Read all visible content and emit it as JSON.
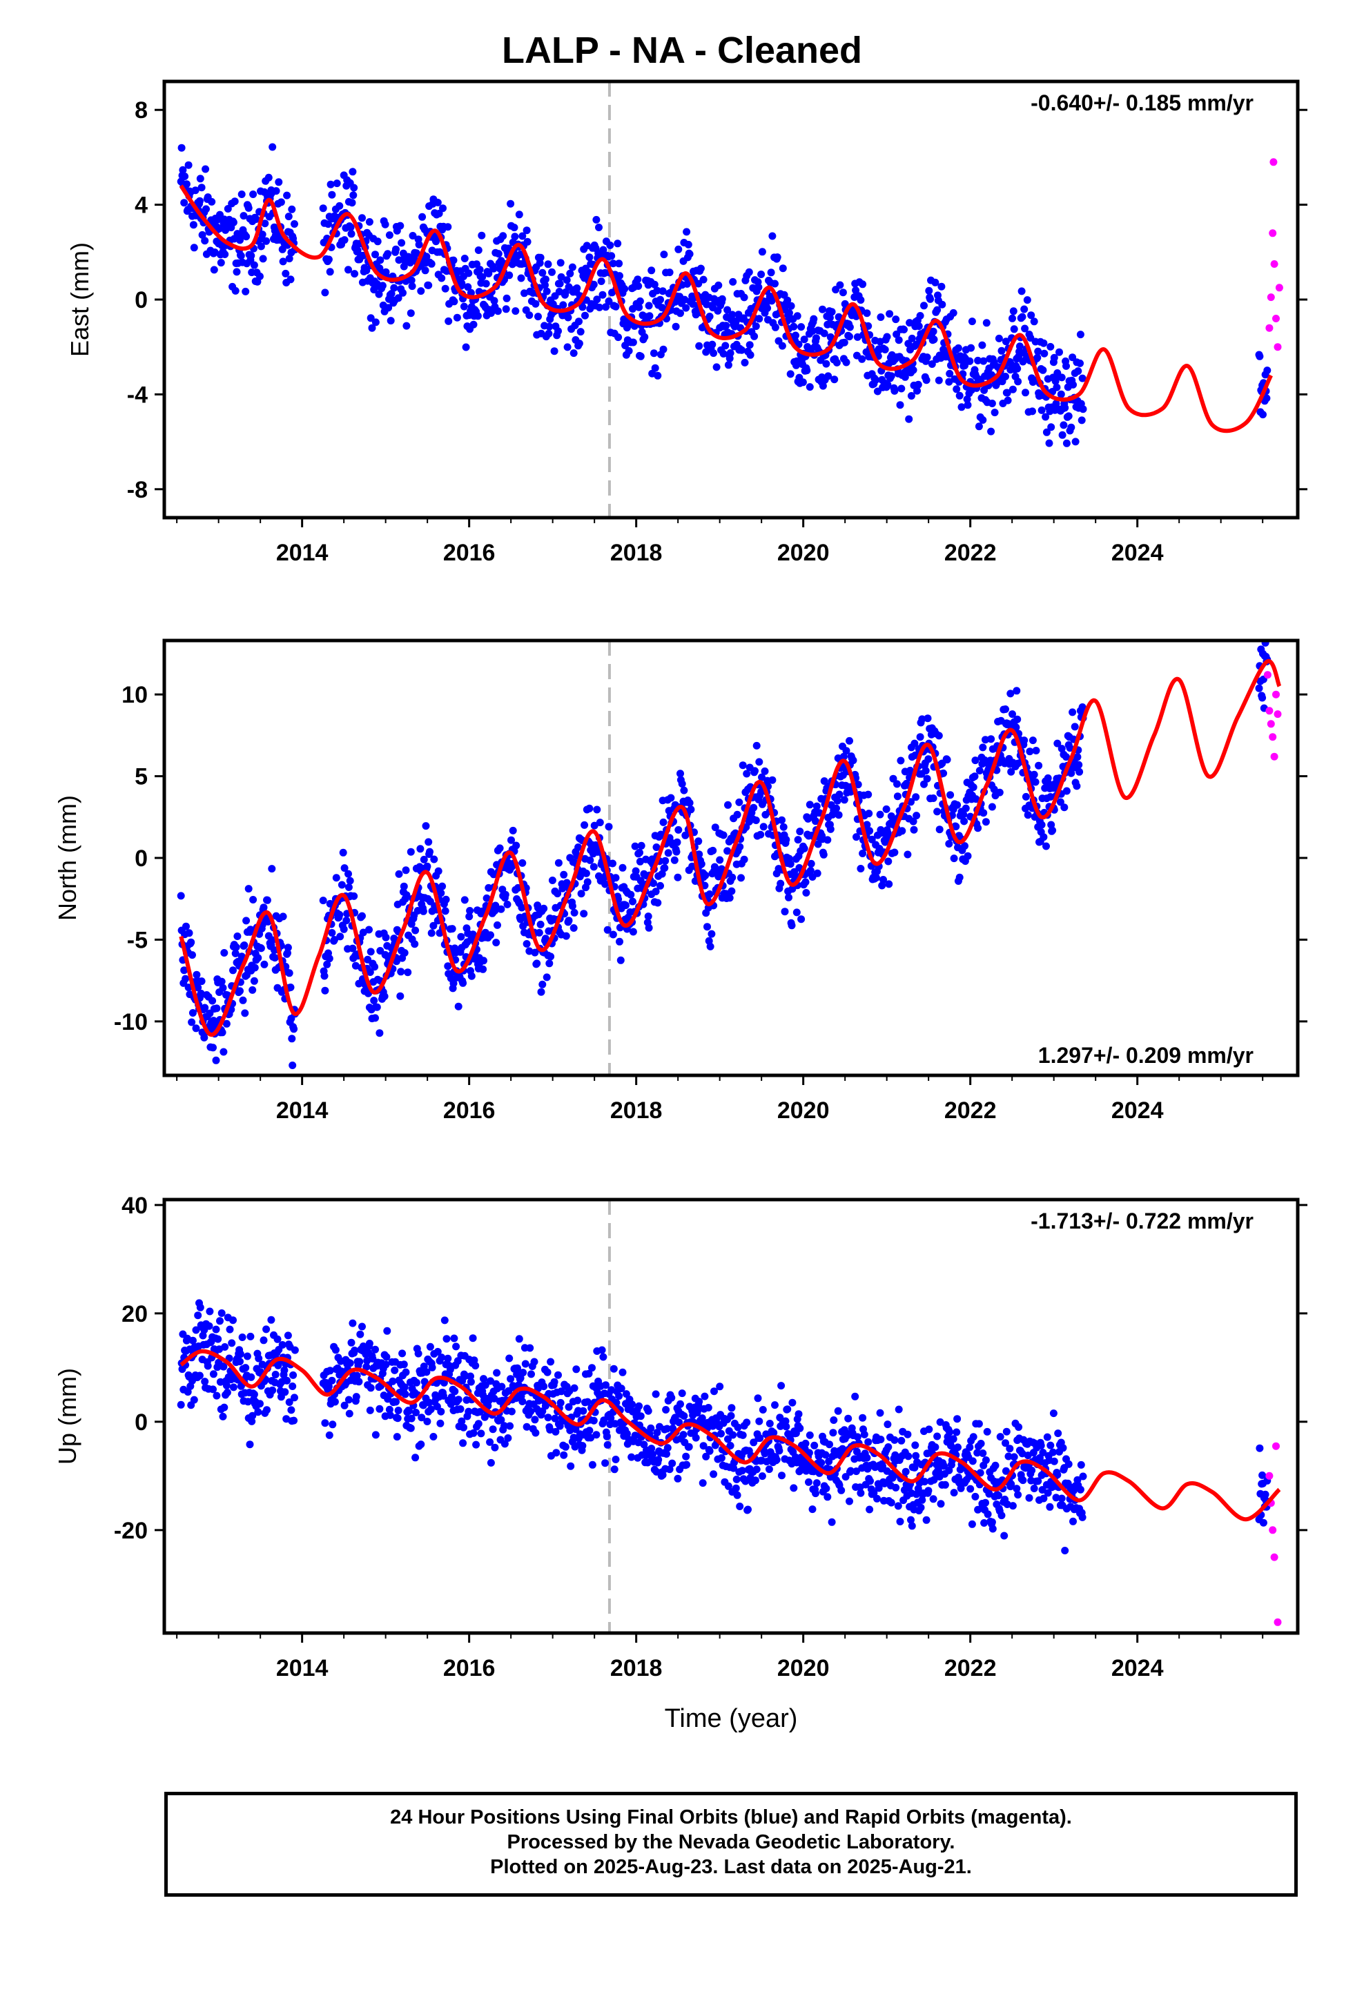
{
  "title": "LALP  - NA - Cleaned",
  "colors": {
    "final": "#0000ff",
    "rapid": "#ff00ff",
    "model": "#ff0000",
    "marker": "#bbbbbb"
  },
  "chart_data": [
    {
      "type": "scatter",
      "ylabel": "East (mm)",
      "rate_label": "-0.640+/- 0.185 mm/yr",
      "rate_position": "top-right",
      "xlim": [
        2012.35,
        2025.92
      ],
      "ylim": [
        -9.2,
        9.2
      ],
      "yticks": [
        -8,
        -4,
        0,
        4,
        8
      ],
      "xticks": [
        2014,
        2016,
        2018,
        2020,
        2022,
        2024
      ],
      "event_line_x": 2017.68,
      "series": [
        {
          "values": [
            [
              2012.55,
              4.8
            ],
            [
              2012.8,
              3.5
            ],
            [
              2013.1,
              2.4
            ],
            [
              2013.4,
              2.3
            ],
            [
              2013.6,
              4.2
            ],
            [
              2013.8,
              2.6
            ],
            [
              2014.2,
              1.8
            ],
            [
              2014.55,
              3.6
            ],
            [
              2014.9,
              1.1
            ],
            [
              2015.3,
              1.1
            ],
            [
              2015.6,
              2.9
            ],
            [
              2015.9,
              0.3
            ],
            [
              2016.3,
              0.5
            ],
            [
              2016.6,
              2.3
            ],
            [
              2016.9,
              -0.2
            ],
            [
              2017.3,
              -0.2
            ],
            [
              2017.6,
              1.7
            ],
            [
              2017.9,
              -0.7
            ],
            [
              2018.3,
              -0.8
            ],
            [
              2018.6,
              1.1
            ],
            [
              2018.9,
              -1.4
            ],
            [
              2019.3,
              -1.3
            ],
            [
              2019.6,
              0.5
            ],
            [
              2019.9,
              -2.0
            ],
            [
              2020.3,
              -2.1
            ],
            [
              2020.6,
              -0.2
            ],
            [
              2020.9,
              -2.7
            ],
            [
              2021.3,
              -2.6
            ],
            [
              2021.6,
              -0.9
            ],
            [
              2021.9,
              -3.4
            ],
            [
              2022.3,
              -3.3
            ],
            [
              2022.6,
              -1.5
            ],
            [
              2022.9,
              -3.9
            ],
            [
              2023.3,
              -4.0
            ],
            [
              2023.6,
              -2.1
            ],
            [
              2023.9,
              -4.6
            ],
            [
              2024.3,
              -4.6
            ],
            [
              2024.6,
              -2.8
            ],
            [
              2024.9,
              -5.3
            ],
            [
              2025.3,
              -5.2
            ],
            [
              2025.6,
              -3.2
            ]
          ]
        },
        {
          "values": [
            [
              2025.58,
              -1.2
            ],
            [
              2025.6,
              0.1
            ],
            [
              2025.62,
              2.8
            ],
            [
              2025.63,
              5.8
            ],
            [
              2025.64,
              1.5
            ],
            [
              2025.66,
              -0.8
            ],
            [
              2025.68,
              -2.0
            ],
            [
              2025.7,
              0.5
            ]
          ]
        }
      ]
    },
    {
      "type": "scatter",
      "ylabel": "North (mm)",
      "rate_label": "1.297+/- 0.209 mm/yr",
      "rate_position": "bottom-right",
      "xlim": [
        2012.35,
        2025.92
      ],
      "ylim": [
        -13.3,
        13.3
      ],
      "yticks": [
        -10,
        -5,
        0,
        5,
        10
      ],
      "xticks": [
        2014,
        2016,
        2018,
        2020,
        2022,
        2024
      ],
      "event_line_x": 2017.68,
      "series": [
        {
          "values": [
            [
              2012.55,
              -4.8
            ],
            [
              2012.9,
              -10.8
            ],
            [
              2013.3,
              -6.5
            ],
            [
              2013.6,
              -3.4
            ],
            [
              2013.9,
              -9.5
            ],
            [
              2014.2,
              -6.0
            ],
            [
              2014.5,
              -2.3
            ],
            [
              2014.85,
              -8.2
            ],
            [
              2015.2,
              -4.5
            ],
            [
              2015.5,
              -0.9
            ],
            [
              2015.85,
              -6.9
            ],
            [
              2016.2,
              -3.5
            ],
            [
              2016.5,
              0.3
            ],
            [
              2016.85,
              -5.6
            ],
            [
              2017.2,
              -2.0
            ],
            [
              2017.5,
              1.6
            ],
            [
              2017.85,
              -4.1
            ],
            [
              2018.2,
              -0.8
            ],
            [
              2018.55,
              3.1
            ],
            [
              2018.85,
              -2.8
            ],
            [
              2019.2,
              1.0
            ],
            [
              2019.5,
              4.6
            ],
            [
              2019.85,
              -1.6
            ],
            [
              2020.2,
              2.1
            ],
            [
              2020.5,
              5.9
            ],
            [
              2020.85,
              -0.3
            ],
            [
              2021.2,
              3.0
            ],
            [
              2021.5,
              6.9
            ],
            [
              2021.85,
              1.0
            ],
            [
              2022.2,
              4.5
            ],
            [
              2022.5,
              7.8
            ],
            [
              2022.85,
              2.5
            ],
            [
              2023.2,
              6.0
            ],
            [
              2023.5,
              9.6
            ],
            [
              2023.85,
              3.7
            ],
            [
              2024.2,
              7.5
            ],
            [
              2024.5,
              10.9
            ],
            [
              2024.85,
              5.0
            ],
            [
              2025.2,
              8.6
            ],
            [
              2025.55,
              12.0
            ],
            [
              2025.7,
              10.5
            ]
          ]
        },
        {
          "values": [
            [
              2025.56,
              11.2
            ],
            [
              2025.58,
              9.0
            ],
            [
              2025.6,
              8.2
            ],
            [
              2025.62,
              7.4
            ],
            [
              2025.64,
              6.2
            ],
            [
              2025.66,
              10.0
            ],
            [
              2025.68,
              8.8
            ]
          ]
        }
      ]
    },
    {
      "type": "scatter",
      "xlabel": "Time (year)",
      "ylabel": "Up (mm)",
      "rate_label": "-1.713+/- 0.722 mm/yr",
      "rate_position": "top-right",
      "xlim": [
        2012.35,
        2025.92
      ],
      "ylim": [
        -39,
        41
      ],
      "yticks": [
        -20,
        0,
        20,
        40
      ],
      "xticks": [
        2014,
        2016,
        2018,
        2020,
        2022,
        2024
      ],
      "event_line_x": 2017.68,
      "series": [
        {
          "values": [
            [
              2012.55,
              10.5
            ],
            [
              2012.8,
              13.0
            ],
            [
              2013.1,
              11.0
            ],
            [
              2013.4,
              6.5
            ],
            [
              2013.7,
              11.5
            ],
            [
              2014.0,
              9.5
            ],
            [
              2014.3,
              5.0
            ],
            [
              2014.6,
              9.5
            ],
            [
              2014.9,
              8.0
            ],
            [
              2015.3,
              3.5
            ],
            [
              2015.6,
              8.0
            ],
            [
              2015.9,
              6.5
            ],
            [
              2016.3,
              1.5
            ],
            [
              2016.6,
              6.0
            ],
            [
              2016.9,
              4.5
            ],
            [
              2017.3,
              -0.5
            ],
            [
              2017.6,
              4.0
            ],
            [
              2017.9,
              0.0
            ],
            [
              2018.3,
              -4.0
            ],
            [
              2018.6,
              -0.5
            ],
            [
              2018.9,
              -2.5
            ],
            [
              2019.3,
              -7.5
            ],
            [
              2019.6,
              -3.0
            ],
            [
              2019.9,
              -4.5
            ],
            [
              2020.3,
              -9.5
            ],
            [
              2020.6,
              -4.5
            ],
            [
              2020.9,
              -6.0
            ],
            [
              2021.3,
              -11.0
            ],
            [
              2021.6,
              -6.0
            ],
            [
              2021.9,
              -7.5
            ],
            [
              2022.3,
              -12.5
            ],
            [
              2022.6,
              -7.5
            ],
            [
              2022.9,
              -9.0
            ],
            [
              2023.3,
              -14.5
            ],
            [
              2023.6,
              -9.5
            ],
            [
              2023.9,
              -11.0
            ],
            [
              2024.3,
              -16.0
            ],
            [
              2024.6,
              -11.5
            ],
            [
              2024.9,
              -13.0
            ],
            [
              2025.3,
              -18.0
            ],
            [
              2025.7,
              -12.5
            ]
          ]
        },
        {
          "values": [
            [
              2025.58,
              -10.0
            ],
            [
              2025.6,
              -15.0
            ],
            [
              2025.62,
              -20.0
            ],
            [
              2025.64,
              -25.0
            ],
            [
              2025.66,
              -4.5
            ],
            [
              2025.68,
              -37.0
            ]
          ]
        }
      ]
    }
  ],
  "footer": {
    "line1": "24 Hour Positions Using Final Orbits (blue) and Rapid Orbits (magenta).",
    "line2": "Processed by the Nevada Geodetic Laboratory.",
    "line3": "Plotted on 2025-Aug-23. Last data on 2025-Aug-21."
  }
}
